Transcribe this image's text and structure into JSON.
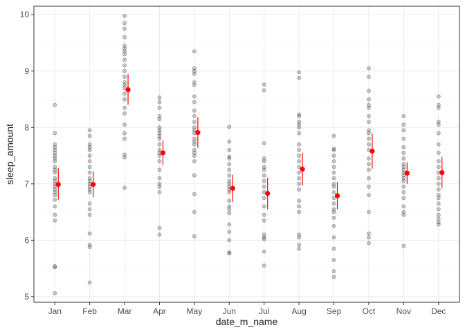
{
  "chart_data": {
    "type": "scatter",
    "xlabel": "date_m_name",
    "ylabel": "sleep_amount",
    "categories": [
      "Jan",
      "Feb",
      "Mar",
      "Apr",
      "May",
      "Jun",
      "Jul",
      "Aug",
      "Sep",
      "Oct",
      "Nov",
      "Dec"
    ],
    "ylim": [
      4.9,
      10.15
    ],
    "yticks": [
      5,
      6,
      7,
      8,
      9,
      10
    ],
    "grid": true,
    "points_color": "#4d4d4d",
    "summary_color": "#ff0000",
    "series": [
      {
        "name": "observations",
        "kind": "points",
        "values": [
          [
            5.06,
            5.52,
            5.54,
            6.35,
            6.45,
            6.6,
            6.72,
            6.8,
            6.85,
            6.9,
            6.95,
            7.0,
            7.05,
            7.1,
            7.2,
            7.25,
            7.3,
            7.4,
            7.45,
            7.5,
            7.55,
            7.6,
            7.65,
            7.7,
            7.9,
            8.4
          ],
          [
            5.25,
            5.88,
            5.92,
            6.12,
            6.45,
            6.55,
            6.65,
            6.85,
            6.9,
            6.95,
            7.0,
            7.05,
            7.1,
            7.2,
            7.3,
            7.4,
            7.5,
            7.6,
            7.65,
            7.7,
            7.85,
            7.95
          ],
          [
            6.93,
            7.47,
            7.52,
            7.8,
            7.9,
            8.05,
            8.25,
            8.35,
            8.5,
            8.6,
            8.7,
            8.75,
            8.8,
            8.9,
            9.0,
            9.1,
            9.2,
            9.3,
            9.35,
            9.4,
            9.45,
            9.6,
            9.75,
            9.85,
            9.98
          ],
          [
            6.1,
            6.22,
            6.85,
            6.95,
            7.0,
            7.1,
            7.25,
            7.4,
            7.5,
            7.55,
            7.6,
            7.7,
            7.8,
            7.85,
            7.9,
            7.95,
            8.0,
            8.15,
            8.2,
            8.35,
            8.45,
            8.53
          ],
          [
            6.07,
            6.5,
            6.82,
            7.15,
            7.4,
            7.5,
            7.55,
            7.6,
            7.7,
            7.75,
            7.8,
            7.9,
            7.95,
            8.0,
            8.1,
            8.2,
            8.3,
            8.45,
            8.55,
            8.75,
            8.8,
            8.95,
            9.0,
            9.05,
            9.35
          ],
          [
            5.77,
            5.78,
            6.0,
            6.15,
            6.28,
            6.48,
            6.55,
            6.6,
            6.7,
            6.85,
            6.9,
            6.95,
            7.0,
            7.05,
            7.15,
            7.25,
            7.35,
            7.45,
            7.48,
            7.6,
            7.75,
            8.01
          ],
          [
            5.55,
            5.8,
            6.02,
            6.05,
            6.1,
            6.35,
            6.45,
            6.6,
            6.75,
            6.85,
            6.95,
            7.05,
            7.15,
            7.25,
            7.3,
            7.4,
            7.45,
            7.72,
            8.66,
            8.76
          ],
          [
            5.85,
            5.92,
            6.05,
            6.1,
            6.5,
            6.6,
            6.7,
            6.9,
            7.0,
            7.1,
            7.2,
            7.3,
            7.4,
            7.5,
            7.6,
            7.7,
            7.9,
            8.0,
            8.05,
            8.1,
            8.2,
            8.23,
            8.88,
            8.98
          ],
          [
            5.35,
            5.45,
            5.65,
            5.85,
            6.05,
            6.25,
            6.4,
            6.5,
            6.55,
            6.65,
            6.75,
            6.85,
            6.95,
            7.0,
            7.1,
            7.2,
            7.3,
            7.4,
            7.5,
            7.6,
            7.62,
            7.85
          ],
          [
            5.95,
            6.05,
            6.12,
            6.5,
            6.8,
            6.95,
            7.1,
            7.25,
            7.35,
            7.45,
            7.6,
            7.7,
            7.8,
            7.9,
            7.95,
            8.1,
            8.2,
            8.35,
            8.4,
            8.5,
            8.65,
            8.9,
            9.05
          ],
          [
            5.9,
            6.45,
            6.5,
            6.6,
            6.75,
            6.85,
            6.95,
            7.05,
            7.1,
            7.15,
            7.2,
            7.25,
            7.3,
            7.35,
            7.45,
            7.55,
            7.65,
            7.8,
            7.95,
            8.05,
            8.2
          ],
          [
            6.28,
            6.32,
            6.38,
            6.45,
            6.55,
            6.65,
            6.75,
            6.8,
            6.9,
            7.0,
            7.1,
            7.2,
            7.3,
            7.4,
            7.55,
            7.7,
            7.9,
            8.05,
            8.1,
            8.35,
            8.4,
            8.55
          ]
        ]
      },
      {
        "name": "mean",
        "kind": "pointrange",
        "values": [
          6.99,
          6.99,
          8.67,
          7.55,
          7.91,
          6.92,
          6.83,
          7.26,
          6.79,
          7.58,
          7.19,
          7.2
        ],
        "low": [
          6.72,
          6.76,
          8.4,
          7.33,
          7.64,
          6.68,
          6.55,
          6.97,
          6.55,
          7.27,
          7.0,
          6.92
        ],
        "high": [
          7.28,
          7.22,
          8.95,
          7.77,
          8.18,
          7.16,
          7.11,
          7.55,
          7.03,
          7.89,
          7.38,
          7.48
        ]
      }
    ]
  }
}
